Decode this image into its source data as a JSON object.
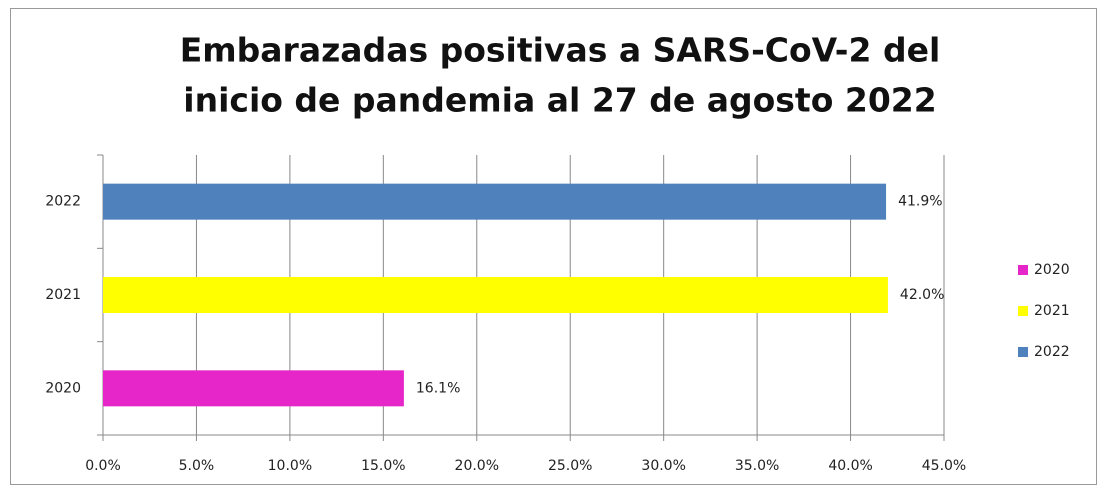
{
  "chart_data": {
    "type": "bar",
    "orientation": "horizontal",
    "title": [
      "Embarazadas positivas a SARS-CoV-2 del",
      "inicio de pandemia al 27 de agosto 2022"
    ],
    "categories": [
      "2020",
      "2021",
      "2022"
    ],
    "values": [
      16.1,
      42.0,
      41.9
    ],
    "value_labels": [
      "16.1%",
      "42.0%",
      "41.9%"
    ],
    "colors": [
      "#e626c8",
      "#ffff00",
      "#4f81bd"
    ],
    "xlim": [
      0,
      45
    ],
    "xticks": [
      {
        "value": 0,
        "label": "0.0%"
      },
      {
        "value": 5,
        "label": "5.0%"
      },
      {
        "value": 10,
        "label": "10.0%"
      },
      {
        "value": 15,
        "label": "15.0%"
      },
      {
        "value": 20,
        "label": "20.0%"
      },
      {
        "value": 25,
        "label": "25.0%"
      },
      {
        "value": 30,
        "label": "30.0%"
      },
      {
        "value": 35,
        "label": "35.0%"
      },
      {
        "value": 40,
        "label": "40.0%"
      },
      {
        "value": 45,
        "label": "45.0%"
      }
    ],
    "grid": true,
    "legend": "right"
  }
}
